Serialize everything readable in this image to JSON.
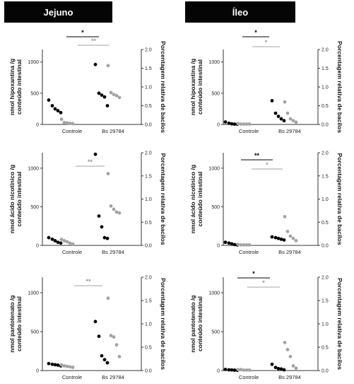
{
  "headers": {
    "left": "Jejuno",
    "right": "Íleo"
  },
  "palette": {
    "black": "#000000",
    "grey": "#a3a3a3",
    "axis": "#333333"
  },
  "chart_data": [
    {
      "id": "jej-hipo",
      "type": "scatter",
      "ylabel": "nmol hipoxantina /g\nconteúdo intestinal",
      "y2label": "Porcentagem relativa de bacilos",
      "categories": [
        "Controle",
        "Bs 29784"
      ],
      "ylim": [
        0,
        1200
      ],
      "y2lim": [
        0,
        2.0
      ],
      "yticks": [
        "0",
        "500",
        "1000"
      ],
      "y2ticks": [
        "0.0",
        "0.5",
        "1.0",
        "1.5",
        "2.0"
      ],
      "black_points": [
        [
          0,
          390
        ],
        [
          0,
          300
        ],
        [
          0,
          250
        ],
        [
          0,
          220
        ],
        [
          0,
          190
        ],
        [
          1,
          960
        ],
        [
          1,
          500
        ],
        [
          1,
          470
        ],
        [
          1,
          440
        ],
        [
          1,
          300
        ]
      ],
      "grey_points": [
        [
          0,
          0.14
        ],
        [
          0,
          0.05
        ],
        [
          0,
          0.04
        ],
        [
          0,
          0.03
        ],
        [
          0,
          0.02
        ],
        [
          1,
          1.57
        ],
        [
          1,
          0.85
        ],
        [
          1,
          0.8
        ],
        [
          1,
          0.77
        ],
        [
          1,
          0.72
        ]
      ],
      "annotations": [
        {
          "text": "*",
          "style": "black"
        },
        {
          "text": "**",
          "style": "grey"
        }
      ]
    },
    {
      "id": "ile-hipo",
      "type": "scatter",
      "ylabel": "nmol hipoxantina /g\nconteúdo intestinal",
      "y2label": "Porcentagem relativa de bacilos",
      "categories": [
        "Controle",
        "Bs 29784"
      ],
      "ylim": [
        0,
        1200
      ],
      "y2lim": [
        0,
        2.0
      ],
      "yticks": [
        "0",
        "500",
        "1000"
      ],
      "y2ticks": [
        "0.0",
        "0.5",
        "1.0",
        "1.5",
        "2.0"
      ],
      "black_points": [
        [
          0,
          40
        ],
        [
          0,
          20
        ],
        [
          0,
          10
        ],
        [
          0,
          5
        ],
        [
          0,
          3
        ],
        [
          1,
          380
        ],
        [
          1,
          180
        ],
        [
          1,
          130
        ],
        [
          1,
          90
        ],
        [
          1,
          60
        ]
      ],
      "grey_points": [
        [
          0,
          0.02
        ],
        [
          0,
          0.01
        ],
        [
          0,
          0.01
        ],
        [
          0,
          0.01
        ],
        [
          0,
          0.01
        ],
        [
          1,
          0.6
        ],
        [
          1,
          0.3
        ],
        [
          1,
          0.15
        ],
        [
          1,
          0.1
        ],
        [
          1,
          0.06
        ]
      ],
      "annotations": [
        {
          "text": "*",
          "style": "black"
        },
        {
          "text": "*",
          "style": "grey"
        }
      ]
    },
    {
      "id": "jej-nic",
      "type": "scatter",
      "ylabel": "nmol ácido nicotínico /g\nconteúdo intestinal",
      "y2label": "Porcentagem relativa de bacilos",
      "categories": [
        "Controle",
        "Bs 29784"
      ],
      "ylim": [
        0,
        1200
      ],
      "y2lim": [
        0,
        2.0
      ],
      "yticks": [
        "0",
        "500",
        "1000"
      ],
      "y2ticks": [
        "0.0",
        "0.5",
        "1.0",
        "1.5",
        "2.0"
      ],
      "black_points": [
        [
          0,
          100
        ],
        [
          0,
          80
        ],
        [
          0,
          60
        ],
        [
          0,
          40
        ],
        [
          0,
          30
        ],
        [
          1,
          1180
        ],
        [
          1,
          380
        ],
        [
          1,
          240
        ],
        [
          1,
          100
        ],
        [
          1,
          90
        ]
      ],
      "grey_points": [
        [
          0,
          0.13
        ],
        [
          0,
          0.1
        ],
        [
          0,
          0.08
        ],
        [
          0,
          0.05
        ],
        [
          0,
          0.03
        ],
        [
          1,
          1.55
        ],
        [
          1,
          0.85
        ],
        [
          1,
          0.78
        ],
        [
          1,
          0.72
        ],
        [
          1,
          0.7
        ]
      ],
      "annotations": [
        {
          "text": "**",
          "style": "grey"
        }
      ]
    },
    {
      "id": "ile-nic",
      "type": "scatter",
      "ylabel": "nmol ácido nicotínico /g\nconteúdo intestinal",
      "y2label": "Porcentagem relativa de bacilos",
      "categories": [
        "Controle",
        "Bs 29784"
      ],
      "ylim": [
        0,
        1200
      ],
      "y2lim": [
        0,
        2.0
      ],
      "yticks": [
        "0",
        "500",
        "1000"
      ],
      "y2ticks": [
        "0.0",
        "0.5",
        "1.0",
        "1.5",
        "2.0"
      ],
      "black_points": [
        [
          0,
          40
        ],
        [
          0,
          30
        ],
        [
          0,
          20
        ],
        [
          0,
          10
        ],
        [
          0,
          5
        ],
        [
          1,
          110
        ],
        [
          1,
          100
        ],
        [
          1,
          90
        ],
        [
          1,
          80
        ],
        [
          1,
          70
        ]
      ],
      "grey_points": [
        [
          0,
          0.02
        ],
        [
          0,
          0.01
        ],
        [
          0,
          0.01
        ],
        [
          0,
          0.01
        ],
        [
          0,
          0.01
        ],
        [
          1,
          0.62
        ],
        [
          1,
          0.3
        ],
        [
          1,
          0.2
        ],
        [
          1,
          0.15
        ],
        [
          1,
          0.1
        ]
      ],
      "annotations": [
        {
          "text": "**",
          "style": "black"
        },
        {
          "text": "*",
          "style": "grey"
        }
      ]
    },
    {
      "id": "jej-pant",
      "type": "scatter",
      "ylabel": "nmol pantotenato /g\nconteúdo intestinal",
      "y2label": "Porcentagem relativa de bacilos",
      "categories": [
        "Controle",
        "Bs 29784"
      ],
      "ylim": [
        0,
        1200
      ],
      "y2lim": [
        0,
        2.0
      ],
      "yticks": [
        "0",
        "500",
        "1000"
      ],
      "y2ticks": [
        "0.0",
        "0.5",
        "1.0",
        "1.5",
        "2.0"
      ],
      "black_points": [
        [
          0,
          90
        ],
        [
          0,
          80
        ],
        [
          0,
          75
        ],
        [
          0,
          70
        ],
        [
          0,
          60
        ],
        [
          1,
          630
        ],
        [
          1,
          440
        ],
        [
          1,
          190
        ],
        [
          1,
          140
        ],
        [
          1,
          100
        ]
      ],
      "grey_points": [
        [
          0,
          0.12
        ],
        [
          0,
          0.1
        ],
        [
          0,
          0.09
        ],
        [
          0,
          0.08
        ],
        [
          0,
          0.07
        ],
        [
          1,
          1.55
        ],
        [
          1,
          0.75
        ],
        [
          1,
          0.72
        ],
        [
          1,
          0.55
        ],
        [
          1,
          0.3
        ]
      ],
      "annotations": [
        {
          "text": "**",
          "style": "grey"
        }
      ]
    },
    {
      "id": "ile-pant",
      "type": "scatter",
      "ylabel": "nmol pantotenato /g\nconteúdo intestinal",
      "y2label": "Porcentagem relativa de bacilos",
      "categories": [
        "Controle",
        "Bs 29784"
      ],
      "ylim": [
        0,
        1200
      ],
      "y2lim": [
        0,
        2.0
      ],
      "yticks": [
        "0",
        "500",
        "1000"
      ],
      "y2ticks": [
        "0.0",
        "0.5",
        "1.0",
        "1.5",
        "2.0"
      ],
      "black_points": [
        [
          0,
          15
        ],
        [
          0,
          10
        ],
        [
          0,
          8
        ],
        [
          0,
          5
        ],
        [
          0,
          3
        ],
        [
          1,
          80
        ],
        [
          1,
          40
        ],
        [
          1,
          25
        ],
        [
          1,
          20
        ],
        [
          1,
          10
        ]
      ],
      "grey_points": [
        [
          0,
          0.02
        ],
        [
          0,
          0.02
        ],
        [
          0,
          0.01
        ],
        [
          0,
          0.01
        ],
        [
          0,
          0.01
        ],
        [
          1,
          0.6
        ],
        [
          1,
          0.45
        ],
        [
          1,
          0.3
        ],
        [
          1,
          0.1
        ],
        [
          1,
          0.05
        ]
      ],
      "annotations": [
        {
          "text": "*",
          "style": "black"
        },
        {
          "text": "*",
          "style": "grey"
        }
      ]
    }
  ]
}
